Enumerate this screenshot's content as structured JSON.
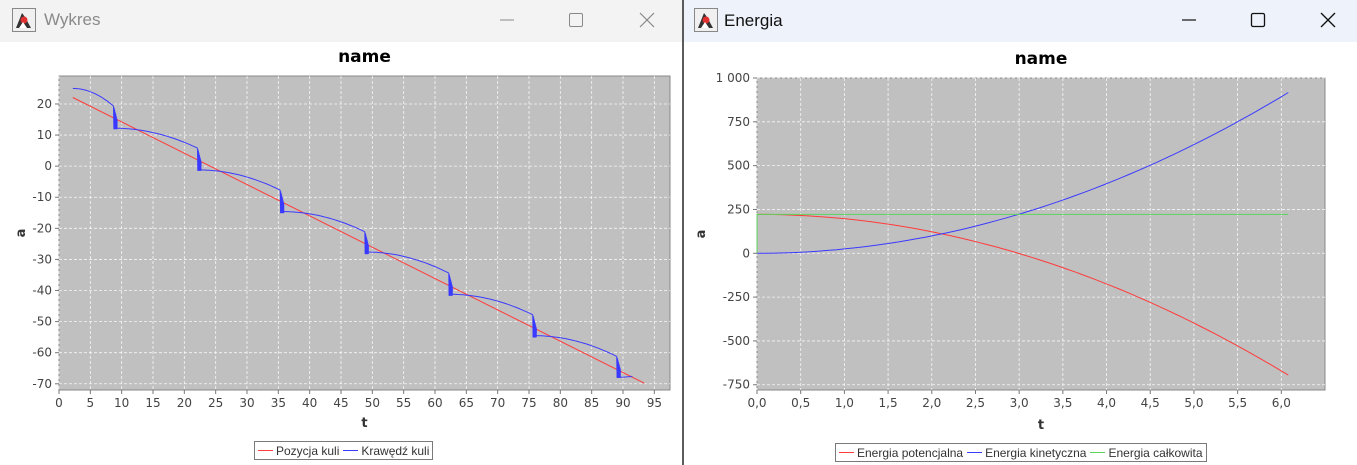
{
  "windows": {
    "left": {
      "title": "Wykres"
    },
    "right": {
      "title": "Energia"
    }
  },
  "icons": {
    "app": "java-duke-icon",
    "minimize": "minimize-icon",
    "maximize": "maximize-icon",
    "close": "close-icon"
  },
  "colors": {
    "plot_bg": "#c0c0c0",
    "red": "#ff3b3b",
    "blue": "#3a3aff",
    "green": "#5bd35b"
  },
  "charts": [
    {
      "id": "wykres",
      "chart_data": {
        "type": "line",
        "title": "name",
        "xlabel": "t",
        "ylabel": "a",
        "xlim": [
          0,
          97.5
        ],
        "ylim": [
          -72,
          29
        ],
        "xticks": [
          0,
          5,
          10,
          15,
          20,
          25,
          30,
          35,
          40,
          45,
          50,
          55,
          60,
          65,
          70,
          75,
          80,
          85,
          90,
          95
        ],
        "yticks": [
          20,
          10,
          0,
          -10,
          -20,
          -30,
          -40,
          -50,
          -60,
          -70
        ],
        "grid": true,
        "legend_position": "bottom",
        "series": [
          {
            "name": "Pozycja kuli",
            "color": "#ff3b3b",
            "x": [
              2.2,
              93.4
            ],
            "y": [
              22.1,
              -69.8
            ]
          },
          {
            "name": "Krawędź kuli",
            "color": "#3a3aff",
            "bounces": [
              {
                "x_start": 2.2,
                "y_start": 25,
                "x_end": 8.7,
                "y_end": 19.3,
                "y_bottom": 11.9
              },
              {
                "x_start": 8.8,
                "y_start": 12.2,
                "x_end": 22.1,
                "y_end": 5.8,
                "y_bottom": -1.5
              },
              {
                "x_start": 22.2,
                "y_start": -1.2,
                "x_end": 35.3,
                "y_end": -7.7,
                "y_bottom": -15.1
              },
              {
                "x_start": 35.5,
                "y_start": -14.6,
                "x_end": 48.8,
                "y_end": -21.1,
                "y_bottom": -28.3
              },
              {
                "x_start": 48.9,
                "y_start": -27.6,
                "x_end": 62.2,
                "y_end": -34.4,
                "y_bottom": -41.7
              },
              {
                "x_start": 62.3,
                "y_start": -41.2,
                "x_end": 75.6,
                "y_end": -47.8,
                "y_bottom": -55.1
              },
              {
                "x_start": 75.7,
                "y_start": -54.5,
                "x_end": 89.0,
                "y_end": -61.2,
                "y_bottom": -68.1
              },
              {
                "x_start": 89.1,
                "y_start": -67.9,
                "x_end": 91.5,
                "y_end": -67.6,
                "y_bottom": -67.9
              }
            ]
          }
        ]
      }
    },
    {
      "id": "energia",
      "chart_data": {
        "type": "line",
        "title": "name",
        "xlabel": "t",
        "ylabel": "a",
        "xlim": [
          0,
          6.5
        ],
        "ylim": [
          -780,
          1000
        ],
        "xticks": [
          "0,0",
          "0,5",
          "1,0",
          "1,5",
          "2,0",
          "2,5",
          "3,0",
          "3,5",
          "4,0",
          "4,5",
          "5,0",
          "5,5",
          "6,0"
        ],
        "yticks": [
          "1 000",
          "750",
          "500",
          "250",
          "0",
          "-250",
          "-500",
          "-750"
        ],
        "grid": true,
        "legend_position": "bottom",
        "series": [
          {
            "name": "Energia potencjalna",
            "color": "#ff3b3b",
            "kind": "parabola",
            "t_end": 6.08,
            "y_at_0": 222,
            "y_at_end": -695
          },
          {
            "name": "Energia kinetyczna",
            "color": "#3a3aff",
            "kind": "parabola",
            "t_end": 6.08,
            "y_at_0": 0,
            "y_at_end": 917
          },
          {
            "name": "Energia całkowita",
            "color": "#5bd35b",
            "kind": "constant",
            "t_end": 6.08,
            "value": 222
          }
        ]
      }
    }
  ]
}
